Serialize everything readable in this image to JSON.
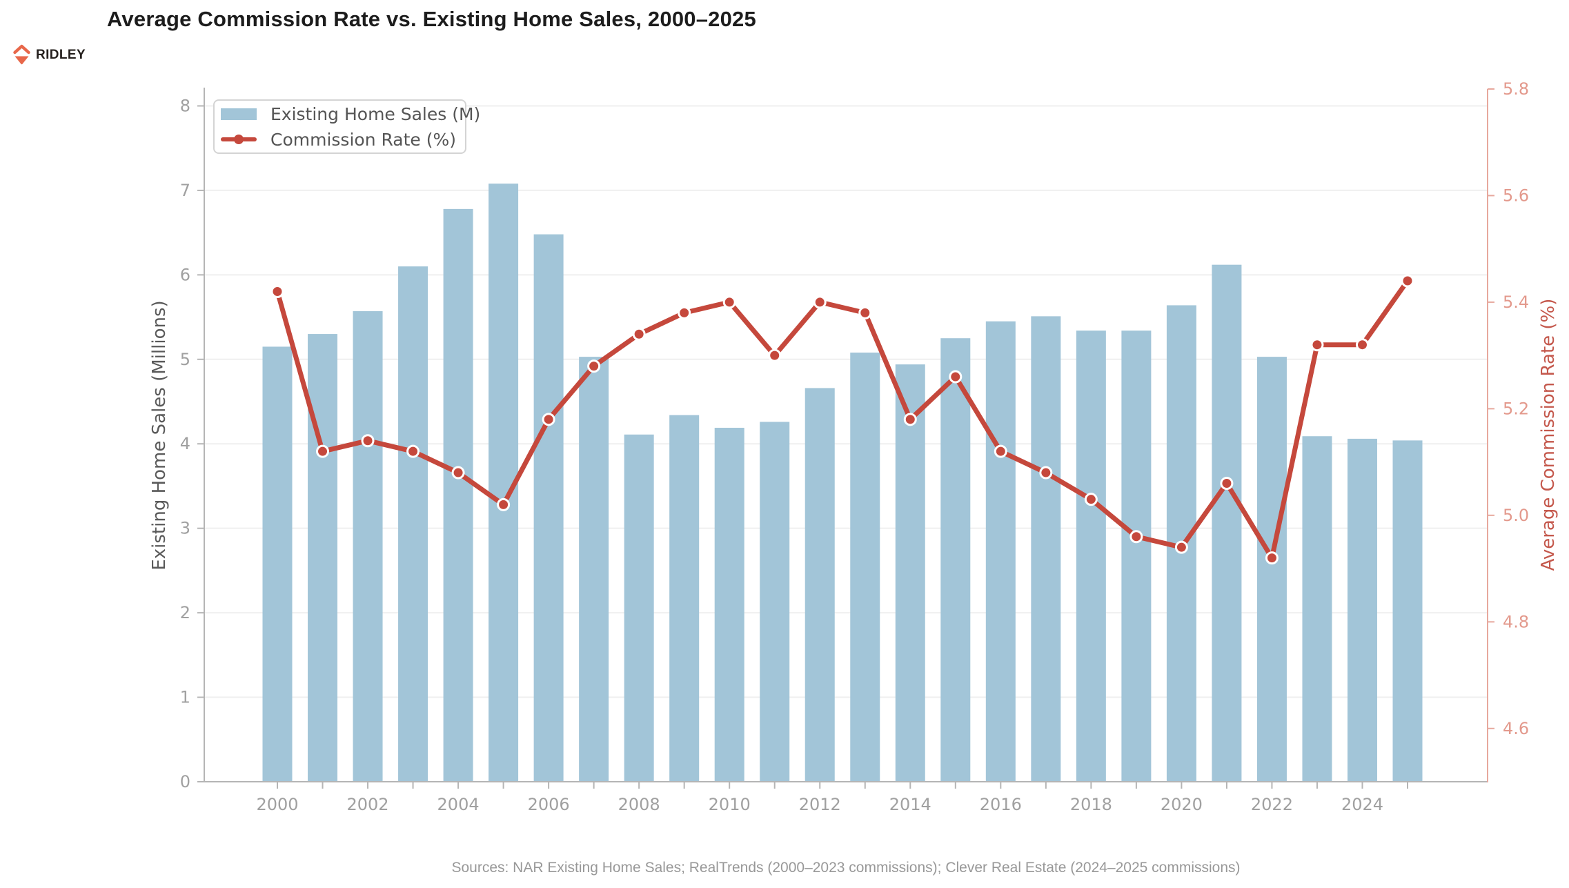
{
  "logo": {
    "text": "RIDLEY"
  },
  "footer": {
    "sources": "Sources: NAR Existing Home Sales; RealTrends (2000–2023 commissions); Clever Real Estate (2024–2025 commissions)"
  },
  "colors": {
    "bar": "#a2c5d8",
    "line": "#c5483c",
    "marker_edge": "#ffffff",
    "grid": "#efefef",
    "axis_gray": "#b5b5b5",
    "tick_label_gray": "#a0a0a0",
    "left_label_gray": "#5a5a5a",
    "right_axis": "#e7a89d",
    "right_tick_label": "#e3998c",
    "right_axis_label": "#c4584c",
    "legend_text": "#555555",
    "title_color": "#1c1c1c",
    "footer_color": "#989898",
    "logo_accent": "#e8674a"
  },
  "chart_data": {
    "type": "bar+line",
    "title": "Average Commission Rate vs. Existing Home Sales, 2000–2025",
    "categories": [
      2000,
      2001,
      2002,
      2003,
      2004,
      2005,
      2006,
      2007,
      2008,
      2009,
      2010,
      2011,
      2012,
      2013,
      2014,
      2015,
      2016,
      2017,
      2018,
      2019,
      2020,
      2021,
      2022,
      2023,
      2024,
      2025
    ],
    "series": [
      {
        "name": "Existing Home Sales (M)",
        "type": "bar",
        "axis": "left",
        "values": [
          5.15,
          5.3,
          5.57,
          6.1,
          6.78,
          7.08,
          6.48,
          5.03,
          4.11,
          4.34,
          4.19,
          4.26,
          4.66,
          5.08,
          4.94,
          5.25,
          5.45,
          5.51,
          5.34,
          5.34,
          5.64,
          6.12,
          5.03,
          4.09,
          4.06,
          4.04
        ]
      },
      {
        "name": "Commission Rate (%)",
        "type": "line",
        "axis": "right",
        "values": [
          5.42,
          5.12,
          5.14,
          5.12,
          5.08,
          5.02,
          5.18,
          5.28,
          5.34,
          5.38,
          5.4,
          5.3,
          5.4,
          5.38,
          5.18,
          5.26,
          5.12,
          5.08,
          5.03,
          4.96,
          4.94,
          5.06,
          4.92,
          5.32,
          5.32,
          5.44
        ]
      }
    ],
    "left_axis": {
      "label": "Existing Home Sales (Millions)",
      "tick_labels": [
        "0",
        "1",
        "2",
        "3",
        "4",
        "5",
        "6",
        "7",
        "8"
      ],
      "range": [
        0,
        8.2
      ]
    },
    "right_axis": {
      "label": "Average Commission Rate (%)",
      "tick_labels": [
        "4.6",
        "4.8",
        "5.0",
        "5.2",
        "5.4",
        "5.6",
        "5.8"
      ],
      "range": [
        4.5,
        5.8
      ]
    },
    "x_axis": {
      "tick_labels": [
        "2000",
        "2002",
        "2004",
        "2006",
        "2008",
        "2010",
        "2012",
        "2014",
        "2016",
        "2018",
        "2020",
        "2022",
        "2024"
      ],
      "label_every": 2
    },
    "grid": true,
    "legend_position": "top-left"
  }
}
